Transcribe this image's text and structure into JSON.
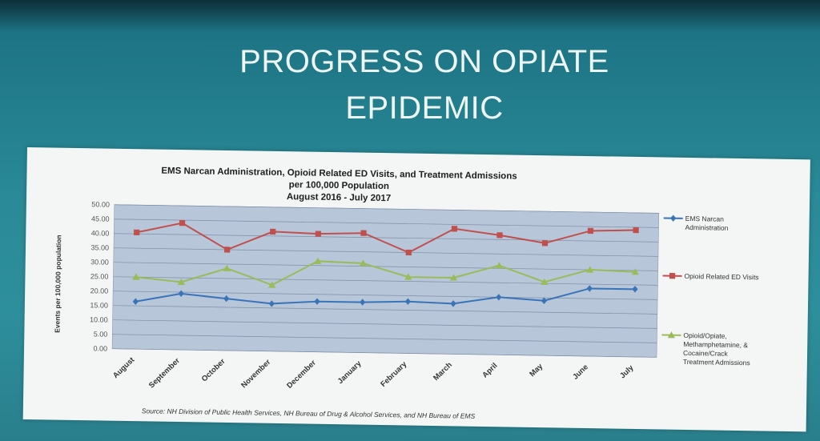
{
  "slide": {
    "title_line1": "PROGRESS ON OPIATE",
    "title_line2": "EPIDEMIC"
  },
  "chart_data": {
    "type": "line",
    "title": "EMS Narcan Administration, Opioid Related ED Visits, and Treatment Admissions",
    "subtitle": "per 100,000 Population",
    "date_range": "August 2016 - July 2017",
    "ylabel": "Events per 100,000 population",
    "xlabel": "",
    "ylim": [
      0,
      50
    ],
    "yticks": [
      "50.00",
      "45.00",
      "40.00",
      "35.00",
      "30.00",
      "25.00",
      "20.00",
      "15.00",
      "10.00",
      "5.00",
      "0.00"
    ],
    "categories": [
      "August",
      "September",
      "October",
      "November",
      "December",
      "January",
      "February",
      "March",
      "April",
      "May",
      "June",
      "July"
    ],
    "grid": true,
    "legend_position": "right",
    "series": [
      {
        "name": "EMS Narcan Administration",
        "color": "#3a74b8",
        "marker": "diamond",
        "values": [
          16.5,
          19.5,
          18.0,
          16.5,
          17.5,
          17.5,
          18.0,
          17.5,
          20.0,
          19.0,
          23.5,
          23.5
        ]
      },
      {
        "name": "Opioid Related ED Visits",
        "color": "#c0504d",
        "marker": "square",
        "values": [
          40.5,
          44.0,
          35.0,
          41.5,
          41.0,
          41.5,
          35.0,
          43.5,
          41.5,
          39.0,
          43.5,
          44.0
        ]
      },
      {
        "name": "Opioid/Opiate, Methamphetamine, & Cocaine/Crack Treatment Admissions",
        "color": "#9bbb59",
        "marker": "triangle",
        "values": [
          25.0,
          23.5,
          28.5,
          23.0,
          31.5,
          31.0,
          26.5,
          26.5,
          31.0,
          25.5,
          30.0,
          29.5
        ]
      }
    ],
    "legend_lines": [
      [
        "EMS Narcan",
        "Administration"
      ],
      [
        "Opioid Related ED Visits"
      ],
      [
        "Opioid/Opiate,",
        "Methamphetamine, &",
        "Cocaine/Crack",
        "Treatment Admissions"
      ]
    ],
    "source": "Source: NH Division of Public Health Services, NH Bureau of Drug & Alcohol Services, and NH Bureau of EMS"
  }
}
